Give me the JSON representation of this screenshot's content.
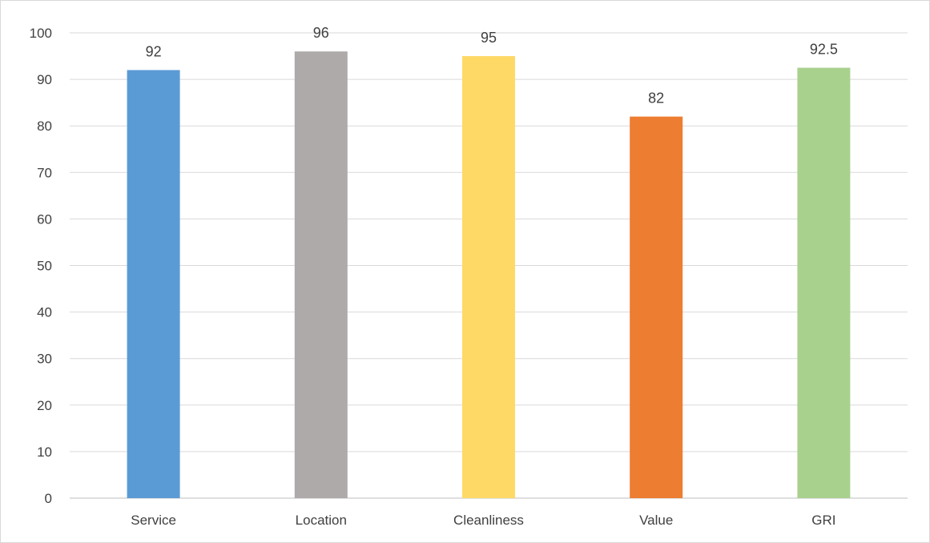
{
  "chart_data": {
    "type": "bar",
    "categories": [
      "Service",
      "Location",
      "Cleanliness",
      "Value",
      "GRI"
    ],
    "values": [
      92,
      96,
      95,
      82,
      92.5
    ],
    "data_labels": [
      "92",
      "96",
      "95",
      "82",
      "92.5"
    ],
    "colors": [
      "#5b9bd5",
      "#aeaaaa",
      "#ffd966",
      "#ed7d31",
      "#a9d18e"
    ],
    "title": "",
    "xlabel": "",
    "ylabel": "",
    "ylim": [
      0,
      100
    ],
    "yticks": [
      0,
      10,
      20,
      30,
      40,
      50,
      60,
      70,
      80,
      90,
      100
    ],
    "grid": true,
    "legend": "none"
  }
}
